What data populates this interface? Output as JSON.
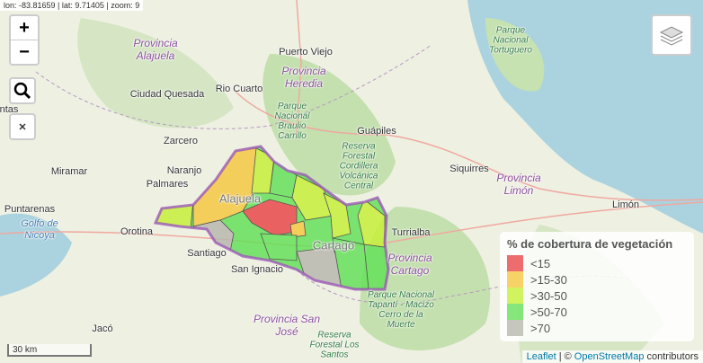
{
  "coordinates": "lon: -83.81659 | lat: 9.71405 | zoom: 9",
  "zoom_in": "+",
  "zoom_out": "−",
  "labels": {
    "provinces": [
      "Provincia Alajuela",
      "Provincia Heredia",
      "Provincia Limón",
      "Provincia Cartago",
      "Provincia San José"
    ],
    "parks": [
      "Parque Nacional Tortuguero",
      "Parque Nacional Braulio Carrillo",
      "Reserva Forestal Cordillera Volcánica Central",
      "Parque Nacional Tapantí - Macizo Cerro de la Muerte",
      "Reserva Forestal Los Santos"
    ],
    "water": [
      "Golfo de Nicoya"
    ],
    "places": [
      "Puerto Viejo",
      "Ciudad Quesada",
      "Rio Cuarto",
      "Guápiles",
      "Zarcero",
      "Miramar",
      "Naranjo",
      "Palmares",
      "Siquirres",
      "Limón",
      "Puntarenas",
      "Orotina",
      "Santiago",
      "Turrialba",
      "San Ignacio",
      "Jacó",
      "ntas"
    ],
    "faded": [
      "Alajuela",
      "Cartago"
    ]
  },
  "legend": {
    "title": "% de cobertura de vegetación",
    "items": [
      {
        "label": "<15",
        "color": "#e8494b"
      },
      {
        "label": ">15-30",
        "color": "#f5c842"
      },
      {
        "label": ">30-50",
        "color": "#c6f03a"
      },
      {
        "label": ">50-70",
        "color": "#66e05a"
      },
      {
        "label": ">70",
        "color": "#b8b8b0"
      }
    ]
  },
  "scale": "30 km",
  "attribution": {
    "leaflet": "Leaflet",
    "separator": "| ©",
    "osm": "OpenStreetMap",
    "suffix": "contributors"
  }
}
